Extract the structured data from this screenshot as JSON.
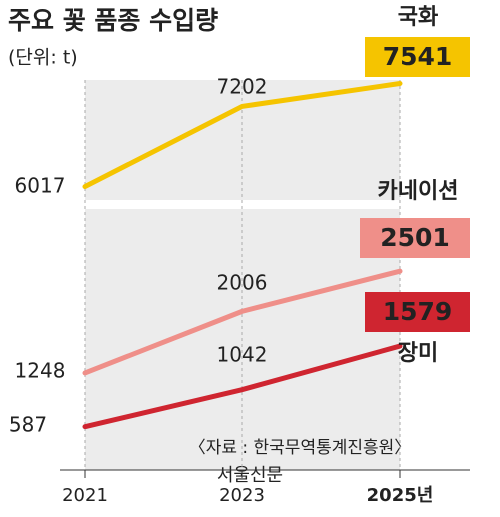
{
  "chart_data": {
    "type": "line",
    "title": "주요 꽃 품종 수입량",
    "subtitle": "(단위: t)",
    "categories": [
      "2021",
      "2023",
      "2025년"
    ],
    "series": [
      {
        "name": "국화",
        "color": "#f5c400",
        "values": [
          6017,
          7202,
          7541
        ]
      },
      {
        "name": "카네이션",
        "color": "#ef8f89",
        "values": [
          1248,
          2006,
          2501
        ]
      },
      {
        "name": "장미",
        "color": "#cf2530",
        "values": [
          587,
          1042,
          1579
        ]
      }
    ],
    "ylim": [
      300,
      7800
    ],
    "axis_break": [
      2700,
      5700
    ],
    "source": "〈자료 : 한국무역통계진흥원〉",
    "watermark": "서울신문"
  }
}
